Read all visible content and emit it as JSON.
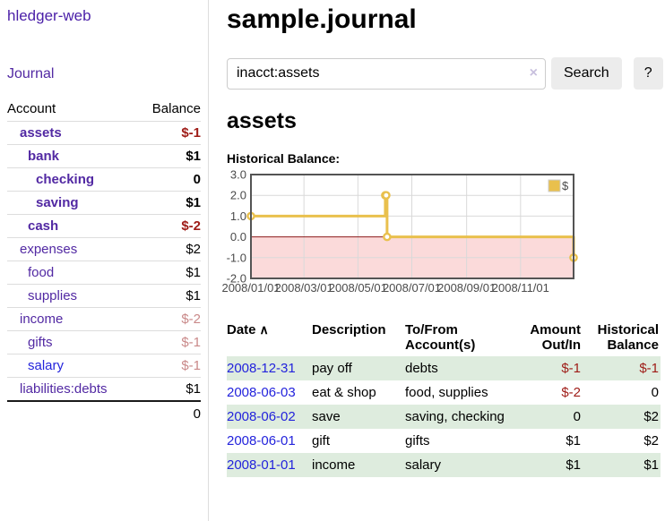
{
  "sidebar": {
    "app_title": "hledger-web",
    "nav": {
      "journal": "Journal"
    },
    "accounts_table": {
      "headers": {
        "account": "Account",
        "balance": "Balance"
      },
      "rows": [
        {
          "name": "assets",
          "balance": "$-1",
          "indent": 1,
          "bold": true,
          "balance_class": "neg"
        },
        {
          "name": "bank",
          "balance": "$1",
          "indent": 2,
          "bold": true,
          "balance_class": ""
        },
        {
          "name": "checking",
          "balance": "0",
          "indent": 3,
          "bold": true,
          "balance_class": ""
        },
        {
          "name": "saving",
          "balance": "$1",
          "indent": 3,
          "bold": true,
          "balance_class": ""
        },
        {
          "name": "cash",
          "balance": "$-2",
          "indent": 2,
          "bold": true,
          "balance_class": "neg"
        },
        {
          "name": "expenses",
          "balance": "$2",
          "indent": 1,
          "bold": false,
          "balance_class": ""
        },
        {
          "name": "food",
          "balance": "$1",
          "indent": 2,
          "bold": false,
          "balance_class": ""
        },
        {
          "name": "supplies",
          "balance": "$1",
          "indent": 2,
          "bold": false,
          "balance_class": ""
        },
        {
          "name": "income",
          "balance": "$-2",
          "indent": 1,
          "bold": false,
          "balance_class": "muted-neg"
        },
        {
          "name": "gifts",
          "balance": "$-1",
          "indent": 2,
          "bold": false,
          "balance_class": "muted-neg"
        },
        {
          "name": "salary",
          "balance": "$-1",
          "indent": 2,
          "bold": false,
          "balance_class": "muted-neg",
          "blue_link": true
        },
        {
          "name": "liabilities:debts",
          "balance": "$1",
          "indent": 1,
          "bold": false,
          "balance_class": ""
        }
      ],
      "total": "0"
    }
  },
  "header": {
    "title": "sample.journal"
  },
  "search": {
    "query": "inacct:assets",
    "clear_icon": "×",
    "search_button": "Search",
    "help_button": "?"
  },
  "account_page": {
    "heading": "assets",
    "chart_label": "Historical Balance:"
  },
  "chart_data": {
    "type": "line",
    "title": "Historical Balance",
    "step": true,
    "series": [
      {
        "name": "$",
        "points": [
          {
            "date": "2008-01-01",
            "value": 1
          },
          {
            "date": "2008-06-01",
            "value": 2
          },
          {
            "date": "2008-06-02",
            "value": 2
          },
          {
            "date": "2008-06-03",
            "value": 0
          },
          {
            "date": "2008-12-31",
            "value": -1
          }
        ]
      }
    ],
    "xrange": [
      "2008-01-01",
      "2008-12-31"
    ],
    "ylim": [
      -2,
      3
    ],
    "y_ticks": [
      3,
      2,
      1,
      0,
      -1,
      -2
    ],
    "x_ticks": [
      {
        "date": "2008-01-01",
        "label": "2008/01/01"
      },
      {
        "date": "2008-03-01",
        "label": "2008/03/01"
      },
      {
        "date": "2008-05-01",
        "label": "2008/05/01"
      },
      {
        "date": "2008-07-01",
        "label": "2008/07/01"
      },
      {
        "date": "2008-09-01",
        "label": "2008/09/01"
      },
      {
        "date": "2008-11-01",
        "label": "2008/11/01"
      }
    ],
    "grid": true,
    "legend_position": "top-right",
    "colors": {
      "line": "#e9c04d",
      "marker_fill": "#ffffff",
      "negative_fill": "#fbdada",
      "zero_line": "#8b1a1a",
      "grid": "#d9d9d9",
      "border": "#545454",
      "tick_text": "#4a4a4a"
    }
  },
  "register_table": {
    "headers": {
      "date": "Date",
      "sort_icon": "∧",
      "description": "Description",
      "accounts": "To/From Account(s)",
      "amount": "Amount Out/In",
      "balance": "Historical Balance"
    },
    "rows": [
      {
        "date": "2008-12-31",
        "description": "pay off",
        "accounts": "debts",
        "amount": "$-1",
        "balance": "$-1",
        "amount_neg": true,
        "balance_neg": true,
        "shaded": true
      },
      {
        "date": "2008-06-03",
        "description": "eat & shop",
        "accounts": "food, supplies",
        "amount": "$-2",
        "balance": "0",
        "amount_neg": true,
        "balance_neg": false,
        "shaded": false
      },
      {
        "date": "2008-06-02",
        "description": "save",
        "accounts": "saving, checking",
        "amount": "0",
        "balance": "$2",
        "amount_neg": false,
        "balance_neg": false,
        "shaded": true
      },
      {
        "date": "2008-06-01",
        "description": "gift",
        "accounts": "gifts",
        "amount": "$1",
        "balance": "$2",
        "amount_neg": false,
        "balance_neg": false,
        "shaded": false
      },
      {
        "date": "2008-01-01",
        "description": "income",
        "accounts": "salary",
        "amount": "$1",
        "balance": "$1",
        "amount_neg": false,
        "balance_neg": false,
        "shaded": true
      }
    ]
  },
  "colors": {
    "purple_link": "#4a1fa8",
    "account_link": "#5229a3",
    "blue_link": "#2323dc",
    "negative": "#9e1b16",
    "negative_muted": "#c98989",
    "row_shade_green": "#deecde",
    "button_bg": "#ececec"
  }
}
